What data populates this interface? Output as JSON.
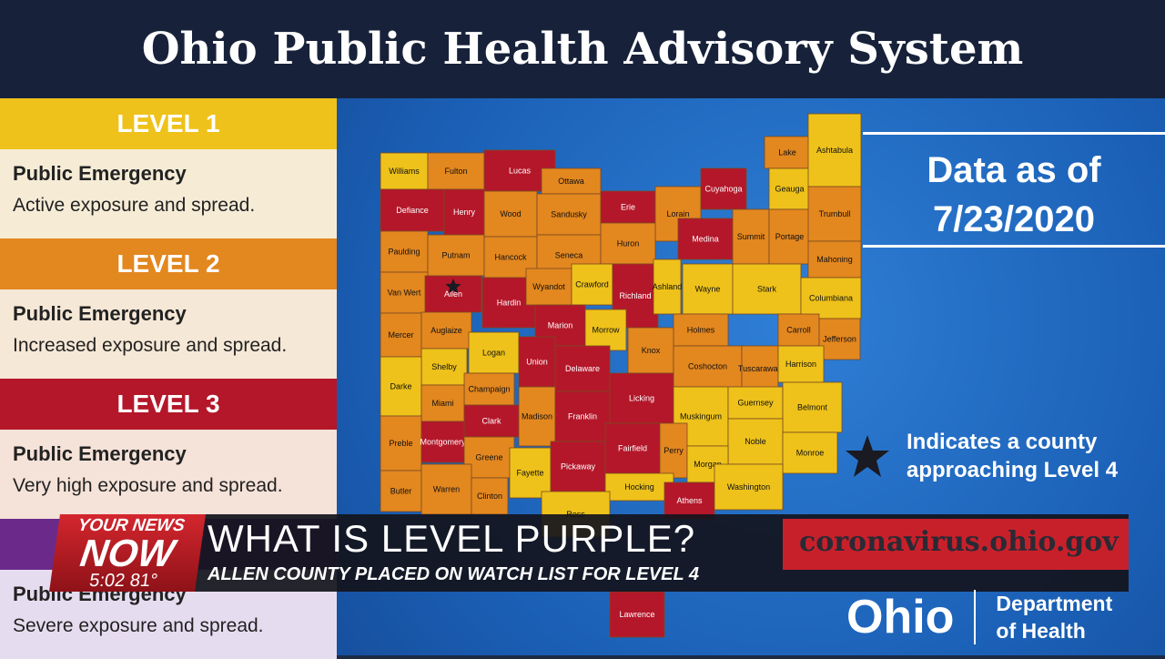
{
  "header": {
    "title": "Ohio Public Health Advisory System"
  },
  "levels": [
    {
      "label": "LEVEL 1",
      "title": "Public Emergency",
      "description": "Active exposure and spread.",
      "color": "#eec21a",
      "body_color": "#f6ecd6"
    },
    {
      "label": "LEVEL 2",
      "title": "Public Emergency",
      "description": "Increased exposure and spread.",
      "color": "#e3871f",
      "body_color": "#f6e8d6"
    },
    {
      "label": "LEVEL 3",
      "title": "Public Emergency",
      "description": "Very high exposure and spread.",
      "color": "#b4172a",
      "body_color": "#f5e2d8"
    },
    {
      "title": "Public Emergency",
      "description": "Severe exposure and spread.",
      "color": "#6b2a8a",
      "body_color": "#e6dcef"
    }
  ],
  "data_note": {
    "line1": "Data as of",
    "date": "7/23/2020"
  },
  "legend": {
    "text": "Indicates a county approaching Level 4"
  },
  "counties": [
    {
      "name": "Williams",
      "level": 1
    },
    {
      "name": "Fulton",
      "level": 2
    },
    {
      "name": "Lucas",
      "level": 3
    },
    {
      "name": "Ottawa",
      "level": 2
    },
    {
      "name": "Defiance",
      "level": 3
    },
    {
      "name": "Henry",
      "level": 3
    },
    {
      "name": "Wood",
      "level": 2
    },
    {
      "name": "Sandusky",
      "level": 2
    },
    {
      "name": "Erie",
      "level": 3
    },
    {
      "name": "Lorain",
      "level": 2
    },
    {
      "name": "Cuyahoga",
      "level": 3
    },
    {
      "name": "Lake",
      "level": 2
    },
    {
      "name": "Geauga",
      "level": 1
    },
    {
      "name": "Ashtabula",
      "level": 1
    },
    {
      "name": "Paulding",
      "level": 2
    },
    {
      "name": "Putnam",
      "level": 2
    },
    {
      "name": "Hancock",
      "level": 2
    },
    {
      "name": "Seneca",
      "level": 2
    },
    {
      "name": "Huron",
      "level": 2
    },
    {
      "name": "Medina",
      "level": 3
    },
    {
      "name": "Summit",
      "level": 2
    },
    {
      "name": "Portage",
      "level": 2
    },
    {
      "name": "Trumbull",
      "level": 2
    },
    {
      "name": "Mahoning",
      "level": 2
    },
    {
      "name": "Van Wert",
      "level": 2
    },
    {
      "name": "Allen",
      "level": 3,
      "approaching_level_4": true
    },
    {
      "name": "Hardin",
      "level": 3
    },
    {
      "name": "Wyandot",
      "level": 2
    },
    {
      "name": "Crawford",
      "level": 1
    },
    {
      "name": "Richland",
      "level": 3
    },
    {
      "name": "Ashland",
      "level": 1
    },
    {
      "name": "Wayne",
      "level": 1
    },
    {
      "name": "Stark",
      "level": 1
    },
    {
      "name": "Columbiana",
      "level": 1
    },
    {
      "name": "Mercer",
      "level": 2
    },
    {
      "name": "Auglaize",
      "level": 2
    },
    {
      "name": "Marion",
      "level": 3
    },
    {
      "name": "Morrow",
      "level": 1
    },
    {
      "name": "Holmes",
      "level": 2
    },
    {
      "name": "Carroll",
      "level": 2
    },
    {
      "name": "Jefferson",
      "level": 2
    },
    {
      "name": "Shelby",
      "level": 1
    },
    {
      "name": "Logan",
      "level": 1
    },
    {
      "name": "Union",
      "level": 3
    },
    {
      "name": "Delaware",
      "level": 3
    },
    {
      "name": "Knox",
      "level": 2
    },
    {
      "name": "Coshocton",
      "level": 2
    },
    {
      "name": "Tuscarawas",
      "level": 2
    },
    {
      "name": "Harrison",
      "level": 1
    },
    {
      "name": "Darke",
      "level": 1
    },
    {
      "name": "Champaign",
      "level": 2
    },
    {
      "name": "Miami",
      "level": 2
    },
    {
      "name": "Clark",
      "level": 3
    },
    {
      "name": "Madison",
      "level": 2
    },
    {
      "name": "Franklin",
      "level": 3
    },
    {
      "name": "Licking",
      "level": 3
    },
    {
      "name": "Muskingum",
      "level": 1
    },
    {
      "name": "Guernsey",
      "level": 1
    },
    {
      "name": "Belmont",
      "level": 1
    },
    {
      "name": "Preble",
      "level": 2
    },
    {
      "name": "Montgomery",
      "level": 3
    },
    {
      "name": "Greene",
      "level": 2
    },
    {
      "name": "Fayette",
      "level": 1
    },
    {
      "name": "Pickaway",
      "level": 3
    },
    {
      "name": "Fairfield",
      "level": 3
    },
    {
      "name": "Perry",
      "level": 2
    },
    {
      "name": "Noble",
      "level": 1
    },
    {
      "name": "Monroe",
      "level": 1
    },
    {
      "name": "Morgan",
      "level": 1
    },
    {
      "name": "Butler",
      "level": 2
    },
    {
      "name": "Warren",
      "level": 2
    },
    {
      "name": "Clinton",
      "level": 2
    },
    {
      "name": "Hocking",
      "level": 1
    },
    {
      "name": "Athens",
      "level": 3
    },
    {
      "name": "Washington",
      "level": 1
    },
    {
      "name": "Ross",
      "level": 1
    },
    {
      "name": "Lawrence",
      "level": 3
    }
  ],
  "website": "coronavirus.ohio.gov",
  "department_logo": {
    "name": "Ohio",
    "department": "Department of Health"
  },
  "news": {
    "brand_top": "YOUR NEWS",
    "brand": "NOW",
    "time": "5:02",
    "temperature": "81°",
    "headline": "WHAT IS LEVEL PURPLE?",
    "subheadline": "ALLEN COUNTY PLACED ON WATCH LIST FOR LEVEL 4"
  }
}
